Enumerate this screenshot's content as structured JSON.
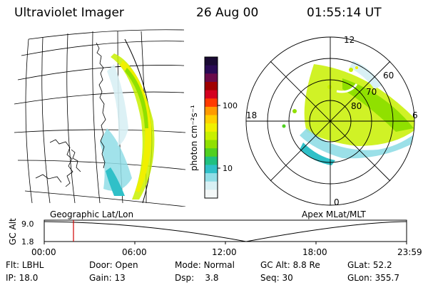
{
  "header": {
    "instrument": "Ultraviolet Imager",
    "date": "26 Aug 00",
    "time": "01:55:14 UT"
  },
  "colorbar": {
    "unit": "photon cm⁻²s⁻¹",
    "tick_labels": [
      "100",
      "10"
    ],
    "colors": [
      "#1a0a33",
      "#2a0a55",
      "#6a0a4a",
      "#a00000",
      "#d40020",
      "#ff3a00",
      "#ff9a00",
      "#ffd000",
      "#f0f000",
      "#c8f000",
      "#90e000",
      "#50d020",
      "#20c080",
      "#30c0c8",
      "#90dde6",
      "#d8f0f4",
      "#f4f8f8"
    ]
  },
  "geo_panel": {
    "label": "Geographic Lat/Lon"
  },
  "polar_panel": {
    "label": "Apex MLat/MLT",
    "mlt_labels": {
      "top": "12",
      "left": "18",
      "right": "6",
      "bottom": "0"
    },
    "lat_labels": [
      "60",
      "70",
      "80"
    ]
  },
  "timeline": {
    "ylabel": "GC Alt",
    "y_ticks": [
      "9.0",
      "1.8"
    ],
    "x_ticks": [
      "00:00",
      "06:00",
      "12:00",
      "18:00",
      "23:59"
    ],
    "marker_time": "01:55",
    "marker_color": "#d00000"
  },
  "info": {
    "row1": [
      {
        "label": "Flt:",
        "value": "LBHL"
      },
      {
        "label": "Door:",
        "value": "Open"
      },
      {
        "label": "Mode:",
        "value": "Normal"
      },
      {
        "label": "GC Alt:",
        "value": "8.8 Re"
      },
      {
        "label": "GLat:",
        "value": "52.2"
      }
    ],
    "row2": [
      {
        "label": "IP:",
        "value": "18.0"
      },
      {
        "label": "Gain:",
        "value": "13"
      },
      {
        "label": "Dsp:",
        "value": "3.8"
      },
      {
        "label": "Seq:",
        "value": "30"
      },
      {
        "label": "GLon:",
        "value": "355.7"
      }
    ]
  }
}
